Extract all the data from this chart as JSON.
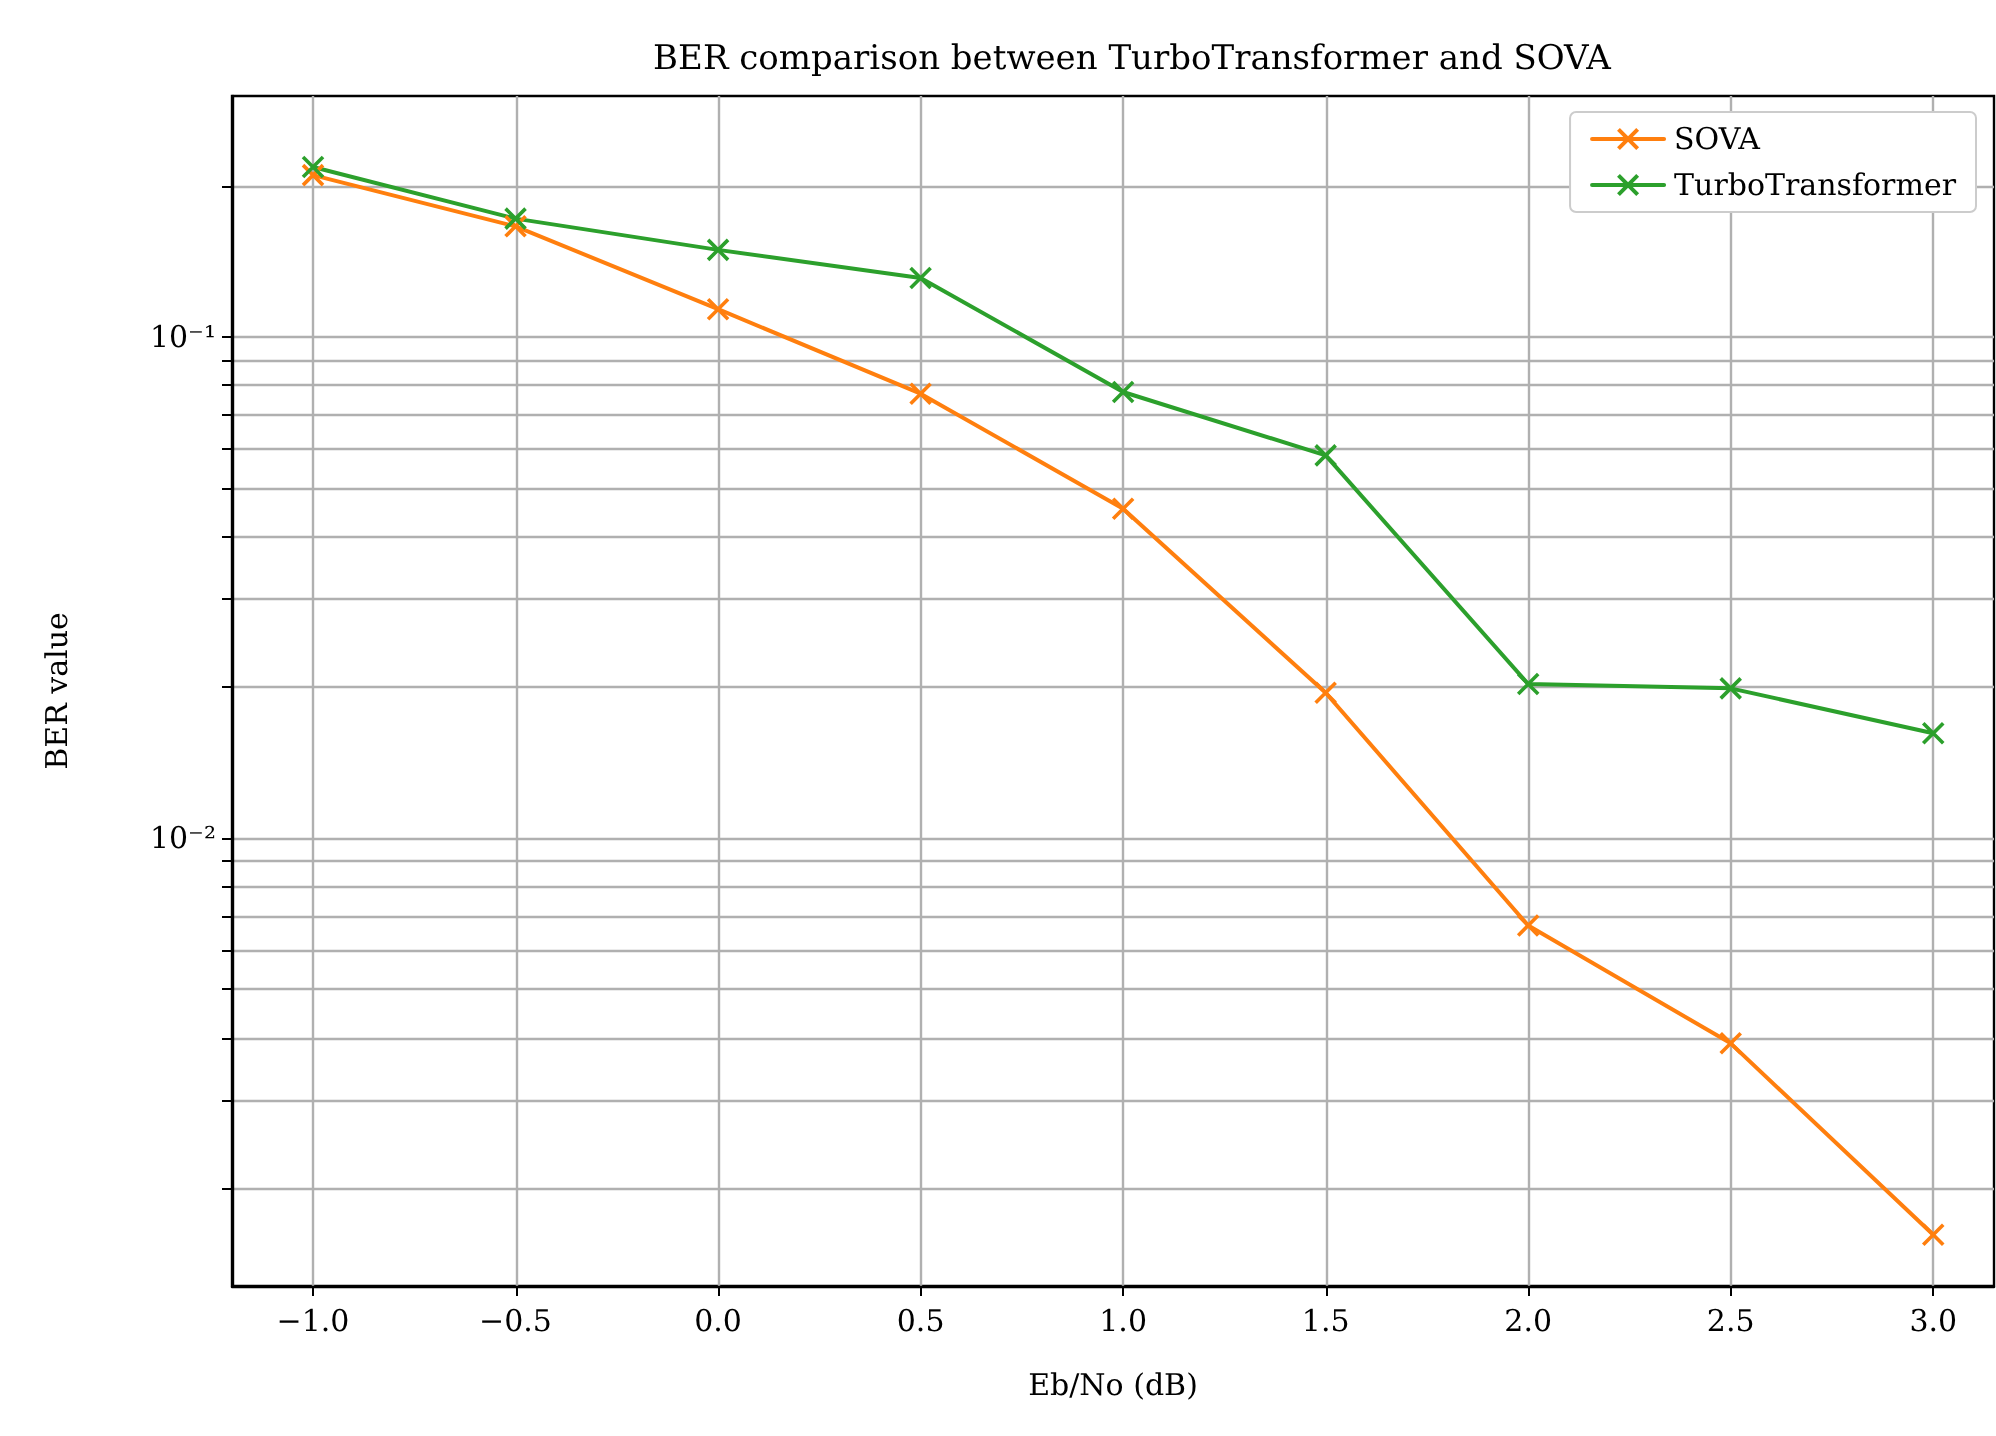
{
  "chart_data": {
    "type": "line",
    "title": "BER comparison between TurboTransformer and SOVA",
    "xlabel": "Eb/No (dB)",
    "ylabel": "BER value",
    "x": [
      -1.0,
      -0.5,
      0.0,
      0.5,
      1.0,
      1.5,
      2.0,
      2.5,
      3.0
    ],
    "series": [
      {
        "name": "SOVA",
        "color": "#ff7f0e",
        "values": [
          0.21,
          0.166,
          0.1135,
          0.077,
          0.0454,
          0.0195,
          0.0067,
          0.0039,
          0.00162
        ]
      },
      {
        "name": "TurboTransformer",
        "color": "#2ca02c",
        "values": [
          0.218,
          0.172,
          0.149,
          0.131,
          0.0776,
          0.058,
          0.0203,
          0.0199,
          0.0162
        ]
      }
    ],
    "log": "y",
    "xlim": [
      -1.2,
      3.15
    ],
    "ylim": [
      0.00128,
      0.302
    ],
    "xticks": [
      {
        "value": -1.0,
        "label": "−1.0"
      },
      {
        "value": -0.5,
        "label": "−0.5"
      },
      {
        "value": 0.0,
        "label": "0.0"
      },
      {
        "value": 0.5,
        "label": "0.5"
      },
      {
        "value": 1.0,
        "label": "1.0"
      },
      {
        "value": 1.5,
        "label": "1.5"
      },
      {
        "value": 2.0,
        "label": "2.0"
      },
      {
        "value": 2.5,
        "label": "2.5"
      },
      {
        "value": 3.0,
        "label": "3.0"
      }
    ],
    "yticks": [
      {
        "value": 0.002,
        "label": null
      },
      {
        "value": 0.003,
        "label": null
      },
      {
        "value": 0.004,
        "label": null
      },
      {
        "value": 0.005,
        "label": null
      },
      {
        "value": 0.006,
        "label": null
      },
      {
        "value": 0.007,
        "label": null
      },
      {
        "value": 0.008,
        "label": null
      },
      {
        "value": 0.009,
        "label": null
      },
      {
        "value": 0.01,
        "label": "10⁻²"
      },
      {
        "value": 0.02,
        "label": null
      },
      {
        "value": 0.03,
        "label": null
      },
      {
        "value": 0.04,
        "label": null
      },
      {
        "value": 0.05,
        "label": null
      },
      {
        "value": 0.06,
        "label": null
      },
      {
        "value": 0.07,
        "label": null
      },
      {
        "value": 0.08,
        "label": null
      },
      {
        "value": 0.09,
        "label": null
      },
      {
        "value": 0.1,
        "label": "10⁻¹"
      },
      {
        "value": 0.2,
        "label": null
      }
    ],
    "grid": true,
    "legend": "top right",
    "marker": "cross",
    "line_style": "solid"
  }
}
